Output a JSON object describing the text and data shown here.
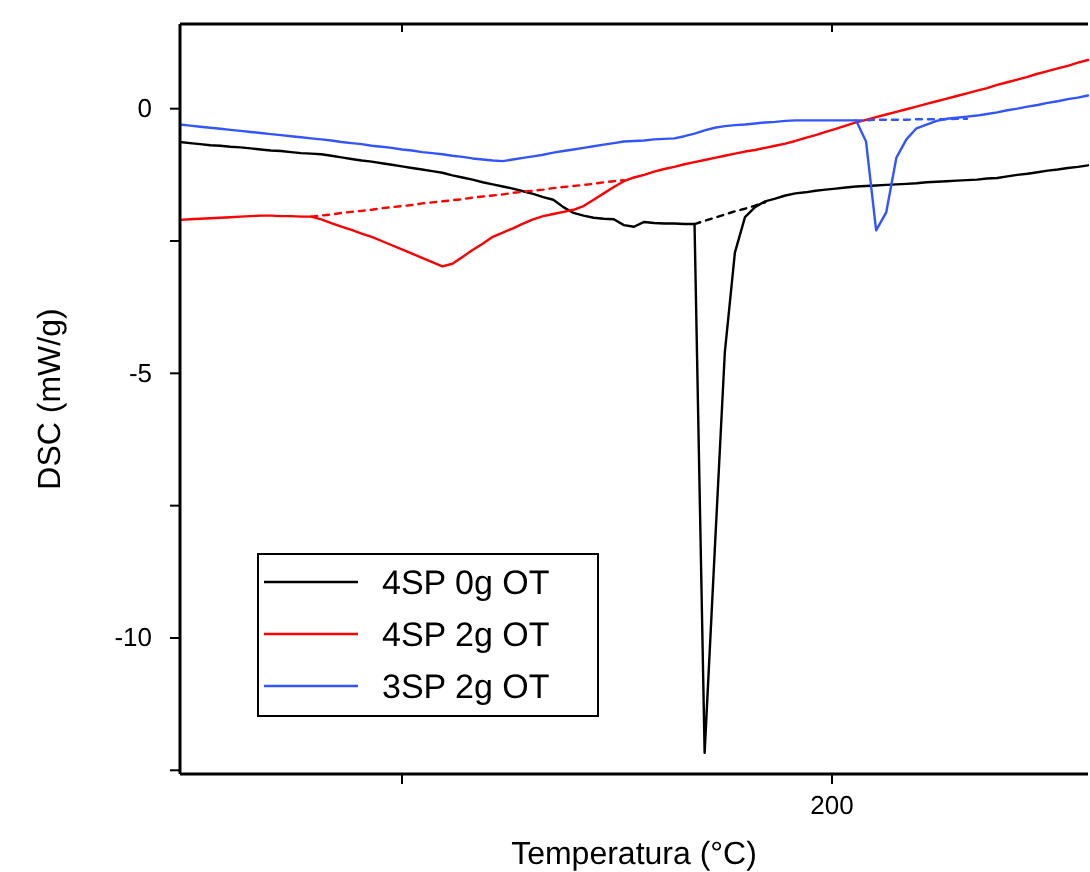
{
  "chart_data": {
    "type": "line",
    "xlabel": "Temperatura (°C)",
    "ylabel": "DSC (mW/g)",
    "categories": [
      null,
      null,
      null,
      null,
      null,
      null,
      null,
      null,
      null,
      null,
      null,
      null,
      null,
      null,
      null,
      null,
      null,
      null,
      null,
      null,
      null,
      null,
      null,
      null,
      null,
      null,
      null,
      null,
      null,
      null,
      null,
      null,
      null,
      null,
      null,
      null,
      null,
      null,
      null,
      null,
      null,
      null,
      null,
      null,
      null,
      null,
      null,
      null,
      null,
      null,
      null,
      null,
      null,
      null,
      null,
      null,
      null,
      null,
      null,
      null,
      null,
      null,
      null,
      null,
      null,
      null,
      null,
      null,
      null,
      null,
      null,
      null,
      null,
      null,
      null,
      null,
      null,
      null,
      null,
      null,
      null,
      null,
      null,
      null,
      null,
      null,
      null,
      null,
      null,
      null,
      null
    ],
    "annotations": [
      "200"
    ],
    "ylim": [
      -12.57,
      1.6
    ],
    "yticks": [
      0,
      {
        "value": -2.5,
        "label": null
      },
      -5,
      {
        "value": -7.5,
        "label": null
      },
      -10,
      {
        "value": -12.5,
        "label": null
      }
    ],
    "grid": false,
    "legend": "bottom left",
    "line_style": "solid",
    "series": [
      {
        "name": "4SP 0g OT",
        "color": "#000000",
        "values": [
          -0.63,
          -0.65,
          -0.67,
          -0.69,
          -0.7,
          -0.72,
          -0.73,
          -0.75,
          -0.77,
          -0.79,
          -0.8,
          -0.82,
          -0.84,
          -0.85,
          -0.86,
          -0.89,
          -0.92,
          -0.95,
          -0.98,
          -1.0,
          -1.03,
          -1.06,
          -1.09,
          -1.12,
          -1.15,
          -1.18,
          -1.21,
          -1.26,
          -1.3,
          -1.34,
          -1.39,
          -1.43,
          -1.47,
          -1.51,
          -1.56,
          -1.61,
          -1.67,
          -1.72,
          -1.86,
          -1.97,
          -2.02,
          -2.06,
          -2.08,
          -2.09,
          -2.2,
          -2.23,
          -2.14,
          -2.16,
          -2.17,
          -2.17,
          -2.18,
          -2.18,
          -12.17,
          -8.36,
          -4.61,
          -2.72,
          -2.05,
          -1.86,
          -1.75,
          -1.7,
          -1.64,
          -1.6,
          -1.58,
          -1.55,
          -1.53,
          -1.51,
          -1.49,
          -1.47,
          -1.46,
          -1.45,
          -1.44,
          -1.43,
          -1.42,
          -1.41,
          -1.39,
          -1.38,
          -1.37,
          -1.36,
          -1.35,
          -1.34,
          -1.32,
          -1.31,
          -1.28,
          -1.25,
          -1.23,
          -1.2,
          -1.17,
          -1.15,
          -1.12,
          -1.1,
          -1.07
        ]
      },
      {
        "name": "4SP 2g OT",
        "color": "#ff0000",
        "values": [
          -2.1,
          -2.09,
          -2.08,
          -2.07,
          -2.06,
          -2.05,
          -2.04,
          -2.03,
          -2.02,
          -2.02,
          -2.03,
          -2.03,
          -2.04,
          -2.04,
          -2.09,
          -2.16,
          -2.23,
          -2.29,
          -2.36,
          -2.42,
          -2.5,
          -2.58,
          -2.66,
          -2.74,
          -2.82,
          -2.9,
          -2.98,
          -2.93,
          -2.8,
          -2.67,
          -2.55,
          -2.42,
          -2.34,
          -2.26,
          -2.17,
          -2.09,
          -2.03,
          -1.99,
          -1.95,
          -1.91,
          -1.84,
          -1.72,
          -1.6,
          -1.48,
          -1.37,
          -1.3,
          -1.25,
          -1.19,
          -1.14,
          -1.1,
          -1.05,
          -1.01,
          -0.97,
          -0.93,
          -0.89,
          -0.85,
          -0.81,
          -0.78,
          -0.74,
          -0.7,
          -0.66,
          -0.61,
          -0.55,
          -0.5,
          -0.44,
          -0.38,
          -0.32,
          -0.26,
          -0.21,
          -0.16,
          -0.11,
          -0.06,
          -0.01,
          0.04,
          0.09,
          0.14,
          0.19,
          0.24,
          0.29,
          0.34,
          0.39,
          0.45,
          0.5,
          0.55,
          0.6,
          0.66,
          0.71,
          0.76,
          0.81,
          0.87,
          0.92
        ]
      },
      {
        "name": "3SP 2g OT",
        "color": "#3355ff",
        "values": [
          -0.3,
          -0.32,
          -0.34,
          -0.36,
          -0.38,
          -0.4,
          -0.42,
          -0.44,
          -0.46,
          -0.48,
          -0.5,
          -0.52,
          -0.54,
          -0.56,
          -0.58,
          -0.6,
          -0.63,
          -0.65,
          -0.67,
          -0.7,
          -0.72,
          -0.74,
          -0.77,
          -0.79,
          -0.82,
          -0.84,
          -0.86,
          -0.89,
          -0.91,
          -0.94,
          -0.96,
          -0.98,
          -0.99,
          -0.96,
          -0.93,
          -0.9,
          -0.87,
          -0.83,
          -0.8,
          -0.77,
          -0.74,
          -0.71,
          -0.68,
          -0.65,
          -0.62,
          -0.61,
          -0.6,
          -0.58,
          -0.57,
          -0.56,
          -0.52,
          -0.47,
          -0.41,
          -0.36,
          -0.33,
          -0.31,
          -0.3,
          -0.28,
          -0.26,
          -0.25,
          -0.23,
          -0.22,
          -0.22,
          -0.22,
          -0.22,
          -0.22,
          -0.22,
          -0.22,
          -0.62,
          -2.3,
          -1.96,
          -0.93,
          -0.58,
          -0.37,
          -0.3,
          -0.23,
          -0.19,
          -0.17,
          -0.15,
          -0.13,
          -0.1,
          -0.07,
          -0.03,
          0.0,
          0.04,
          0.07,
          0.11,
          0.14,
          0.18,
          0.21,
          0.25
        ]
      },
      {
        "color": "#000000",
        "line_style": "dashed",
        "values": [
          null,
          null,
          null,
          null,
          null,
          null,
          null,
          null,
          null,
          null,
          null,
          null,
          null,
          null,
          null,
          null,
          null,
          null,
          null,
          null,
          null,
          null,
          null,
          null,
          null,
          null,
          null,
          null,
          null,
          null,
          null,
          null,
          null,
          null,
          null,
          null,
          null,
          null,
          null,
          null,
          null,
          null,
          null,
          null,
          null,
          null,
          null,
          null,
          null,
          null,
          null,
          -2.18,
          -2.12,
          -2.06,
          -2.0,
          -1.94,
          -1.89,
          -1.83,
          -1.77,
          null,
          null,
          null,
          null,
          null,
          null,
          null,
          null,
          null,
          null,
          null,
          null,
          null,
          null,
          null,
          null,
          null,
          null,
          null,
          null,
          null,
          null,
          null,
          null,
          null,
          null,
          null,
          null,
          null,
          null,
          null,
          null
        ]
      },
      {
        "color": "#ff0000",
        "line_style": "dashed",
        "values": [
          null,
          null,
          null,
          null,
          null,
          null,
          null,
          null,
          null,
          null,
          null,
          null,
          null,
          -2.04,
          -2.02,
          -2.0,
          -1.97,
          -1.95,
          -1.93,
          -1.91,
          -1.88,
          -1.86,
          -1.84,
          -1.82,
          -1.79,
          -1.77,
          -1.75,
          -1.73,
          -1.71,
          -1.68,
          -1.66,
          -1.64,
          -1.62,
          -1.59,
          -1.57,
          -1.55,
          -1.53,
          -1.5,
          -1.48,
          -1.46,
          -1.44,
          -1.42,
          -1.39,
          -1.37,
          -1.35,
          null,
          null,
          null,
          null,
          null,
          null,
          null,
          null,
          null,
          null,
          null,
          null,
          null,
          null,
          null,
          null,
          null,
          null,
          null,
          null,
          null,
          null,
          null,
          null,
          null,
          null,
          null,
          null,
          null,
          null,
          null,
          null,
          null,
          null,
          null,
          null,
          null,
          null,
          null,
          null,
          null,
          null,
          null,
          null,
          null,
          null
        ]
      },
      {
        "color": "#3355ff",
        "line_style": "dashed",
        "values": [
          null,
          null,
          null,
          null,
          null,
          null,
          null,
          null,
          null,
          null,
          null,
          null,
          null,
          null,
          null,
          null,
          null,
          null,
          null,
          null,
          null,
          null,
          null,
          null,
          null,
          null,
          null,
          null,
          null,
          null,
          null,
          null,
          null,
          null,
          null,
          null,
          null,
          null,
          null,
          null,
          null,
          null,
          null,
          null,
          null,
          null,
          null,
          null,
          null,
          null,
          null,
          null,
          null,
          null,
          null,
          null,
          null,
          null,
          null,
          null,
          null,
          null,
          null,
          null,
          null,
          null,
          null,
          -0.22,
          -0.22,
          -0.21,
          -0.21,
          -0.21,
          -0.21,
          -0.2,
          -0.2,
          -0.2,
          -0.2,
          -0.19,
          -0.19,
          null,
          null,
          null,
          null,
          null,
          null,
          null,
          null,
          null,
          null,
          null,
          null
        ]
      }
    ]
  }
}
